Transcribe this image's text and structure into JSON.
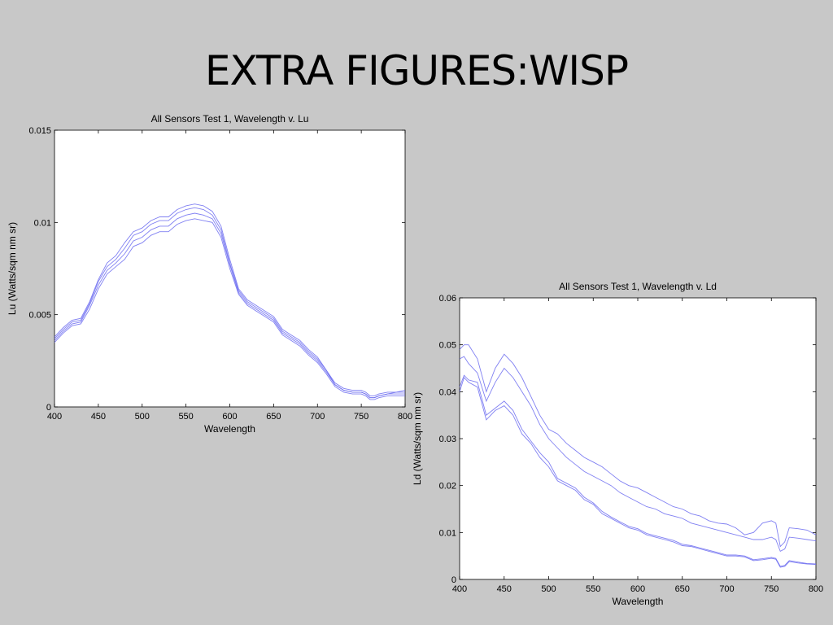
{
  "slide": {
    "title": "EXTRA FIGURES:WISP"
  },
  "chart_data": [
    {
      "type": "line",
      "title": "All Sensors Test 1, Wavelength v. Lu",
      "xlabel": "Wavelength",
      "ylabel": "Lu (Watts/sqm nm sr)",
      "xlim": [
        400,
        800
      ],
      "ylim": [
        0,
        0.015
      ],
      "xticks": [
        400,
        450,
        500,
        550,
        600,
        650,
        700,
        750,
        800
      ],
      "yticks": [
        0,
        0.005,
        0.01,
        0.015
      ],
      "ytick_labels": [
        "0",
        "0.005",
        "0.01",
        "0.015"
      ],
      "grid": false,
      "color": "#6a6af0",
      "series": [
        {
          "x": [
            400,
            410,
            420,
            430,
            440,
            450,
            460,
            470,
            480,
            490,
            500,
            510,
            520,
            530,
            540,
            550,
            560,
            570,
            580,
            590,
            600,
            610,
            620,
            630,
            640,
            650,
            660,
            670,
            680,
            690,
            700,
            710,
            720,
            730,
            740,
            750,
            755,
            760,
            765,
            770,
            780,
            790,
            800
          ],
          "y": [
            0.0035,
            0.004,
            0.0044,
            0.0045,
            0.0053,
            0.0064,
            0.0072,
            0.0076,
            0.008,
            0.0087,
            0.0089,
            0.0093,
            0.0095,
            0.0095,
            0.0099,
            0.0101,
            0.0102,
            0.0101,
            0.01,
            0.0092,
            0.0075,
            0.0061,
            0.0055,
            0.0052,
            0.0049,
            0.0046,
            0.0039,
            0.0036,
            0.0033,
            0.0028,
            0.0024,
            0.0018,
            0.0011,
            0.0008,
            0.0007,
            0.0007,
            0.0006,
            0.0004,
            0.0004,
            0.0005,
            0.0006,
            0.0006,
            0.0006
          ]
        },
        {
          "x": [
            400,
            410,
            420,
            430,
            440,
            450,
            460,
            470,
            480,
            490,
            500,
            510,
            520,
            530,
            540,
            550,
            560,
            570,
            580,
            590,
            600,
            610,
            620,
            630,
            640,
            650,
            660,
            670,
            680,
            690,
            700,
            710,
            720,
            730,
            740,
            750,
            755,
            760,
            765,
            770,
            780,
            790,
            800
          ],
          "y": [
            0.0036,
            0.0041,
            0.0045,
            0.0046,
            0.0055,
            0.0066,
            0.0074,
            0.0078,
            0.0083,
            0.009,
            0.0092,
            0.0096,
            0.0098,
            0.0098,
            0.0102,
            0.0104,
            0.0105,
            0.0104,
            0.0102,
            0.0094,
            0.0077,
            0.0062,
            0.0056,
            0.0053,
            0.005,
            0.0047,
            0.004,
            0.0037,
            0.0034,
            0.0029,
            0.0025,
            0.0019,
            0.0012,
            0.0009,
            0.0008,
            0.0008,
            0.0007,
            0.0005,
            0.0005,
            0.0006,
            0.0007,
            0.0007,
            0.0007
          ]
        },
        {
          "x": [
            400,
            410,
            420,
            430,
            440,
            450,
            460,
            470,
            480,
            490,
            500,
            510,
            520,
            530,
            540,
            550,
            560,
            570,
            580,
            590,
            600,
            610,
            620,
            630,
            640,
            650,
            660,
            670,
            680,
            690,
            700,
            710,
            720,
            730,
            740,
            750,
            755,
            760,
            765,
            770,
            780,
            790,
            800
          ],
          "y": [
            0.0037,
            0.0042,
            0.0046,
            0.0047,
            0.0056,
            0.0068,
            0.0076,
            0.008,
            0.0086,
            0.0093,
            0.0095,
            0.0099,
            0.0101,
            0.0101,
            0.0105,
            0.0107,
            0.0108,
            0.0107,
            0.0104,
            0.0096,
            0.0078,
            0.0063,
            0.0057,
            0.0054,
            0.0051,
            0.0048,
            0.0041,
            0.0038,
            0.0035,
            0.003,
            0.0026,
            0.002,
            0.0012,
            0.0009,
            0.0008,
            0.0008,
            0.0007,
            0.0005,
            0.0005,
            0.0006,
            0.0007,
            0.0008,
            0.0008
          ]
        },
        {
          "x": [
            400,
            410,
            420,
            430,
            440,
            450,
            460,
            470,
            480,
            490,
            500,
            510,
            520,
            530,
            540,
            550,
            560,
            570,
            580,
            590,
            600,
            610,
            620,
            630,
            640,
            650,
            660,
            670,
            680,
            690,
            700,
            710,
            720,
            730,
            740,
            750,
            755,
            760,
            765,
            770,
            780,
            790,
            800
          ],
          "y": [
            0.0038,
            0.0043,
            0.0047,
            0.0048,
            0.0057,
            0.0069,
            0.0078,
            0.0082,
            0.0089,
            0.0095,
            0.0097,
            0.0101,
            0.0103,
            0.0103,
            0.0107,
            0.0109,
            0.011,
            0.0109,
            0.0106,
            0.0098,
            0.008,
            0.0064,
            0.0058,
            0.0055,
            0.0052,
            0.0049,
            0.0042,
            0.0039,
            0.0036,
            0.0031,
            0.0027,
            0.002,
            0.0013,
            0.001,
            0.0009,
            0.0009,
            0.0008,
            0.0006,
            0.0006,
            0.0007,
            0.0008,
            0.0008,
            0.0009
          ]
        }
      ]
    },
    {
      "type": "line",
      "title": "All Sensors Test 1, Wavelength v. Ld",
      "xlabel": "Wavelength",
      "ylabel": "Ld (Watts/sqm nm sr)",
      "xlim": [
        400,
        800
      ],
      "ylim": [
        0,
        0.06
      ],
      "xticks": [
        400,
        450,
        500,
        550,
        600,
        650,
        700,
        750,
        800
      ],
      "yticks": [
        0,
        0.01,
        0.02,
        0.03,
        0.04,
        0.05,
        0.06
      ],
      "ytick_labels": [
        "0",
        "0.01",
        "0.02",
        "0.03",
        "0.04",
        "0.05",
        "0.06"
      ],
      "grid": false,
      "color": "#6a6af0",
      "series": [
        {
          "x": [
            400,
            405,
            410,
            420,
            430,
            440,
            450,
            460,
            470,
            480,
            490,
            500,
            510,
            520,
            530,
            540,
            550,
            560,
            570,
            580,
            590,
            600,
            610,
            620,
            630,
            640,
            650,
            660,
            670,
            680,
            690,
            700,
            710,
            720,
            730,
            740,
            750,
            755,
            760,
            765,
            770,
            780,
            790,
            800
          ],
          "y": [
            0.04,
            0.043,
            0.042,
            0.041,
            0.034,
            0.036,
            0.037,
            0.035,
            0.031,
            0.029,
            0.026,
            0.024,
            0.021,
            0.02,
            0.019,
            0.017,
            0.016,
            0.014,
            0.013,
            0.012,
            0.011,
            0.0105,
            0.0095,
            0.009,
            0.0085,
            0.008,
            0.0072,
            0.007,
            0.0065,
            0.006,
            0.0055,
            0.005,
            0.005,
            0.0048,
            0.004,
            0.0042,
            0.0045,
            0.0043,
            0.0026,
            0.0028,
            0.0038,
            0.0035,
            0.0033,
            0.0032
          ]
        },
        {
          "x": [
            400,
            405,
            410,
            420,
            430,
            440,
            450,
            460,
            470,
            480,
            490,
            500,
            510,
            520,
            530,
            540,
            550,
            560,
            570,
            580,
            590,
            600,
            610,
            620,
            630,
            640,
            650,
            660,
            670,
            680,
            690,
            700,
            710,
            720,
            730,
            740,
            750,
            755,
            760,
            765,
            770,
            780,
            790,
            800
          ],
          "y": [
            0.041,
            0.0435,
            0.0425,
            0.042,
            0.035,
            0.0365,
            0.038,
            0.036,
            0.032,
            0.0295,
            0.027,
            0.025,
            0.0215,
            0.0205,
            0.0195,
            0.0175,
            0.0163,
            0.0145,
            0.0133,
            0.0123,
            0.0113,
            0.0108,
            0.0098,
            0.0093,
            0.0088,
            0.0083,
            0.0075,
            0.0072,
            0.0067,
            0.0062,
            0.0057,
            0.0052,
            0.0052,
            0.005,
            0.0042,
            0.0044,
            0.0047,
            0.0045,
            0.0028,
            0.003,
            0.004,
            0.0037,
            0.0034,
            0.0033
          ]
        },
        {
          "x": [
            400,
            405,
            410,
            420,
            430,
            440,
            450,
            460,
            470,
            480,
            490,
            500,
            510,
            520,
            530,
            540,
            550,
            560,
            570,
            580,
            590,
            600,
            610,
            620,
            630,
            640,
            650,
            660,
            670,
            680,
            690,
            700,
            710,
            720,
            730,
            740,
            750,
            755,
            760,
            765,
            770,
            780,
            790,
            800
          ],
          "y": [
            0.047,
            0.0475,
            0.046,
            0.044,
            0.038,
            0.042,
            0.045,
            0.043,
            0.04,
            0.037,
            0.033,
            0.03,
            0.028,
            0.026,
            0.0245,
            0.023,
            0.022,
            0.021,
            0.02,
            0.0185,
            0.0175,
            0.0165,
            0.0155,
            0.015,
            0.014,
            0.0135,
            0.013,
            0.012,
            0.0115,
            0.011,
            0.0105,
            0.01,
            0.0095,
            0.009,
            0.0085,
            0.0085,
            0.009,
            0.0085,
            0.006,
            0.0065,
            0.009,
            0.0088,
            0.0085,
            0.0082
          ]
        },
        {
          "x": [
            400,
            405,
            410,
            420,
            430,
            440,
            450,
            460,
            470,
            480,
            490,
            500,
            510,
            520,
            530,
            540,
            550,
            560,
            570,
            580,
            590,
            600,
            610,
            620,
            630,
            640,
            650,
            660,
            670,
            680,
            690,
            700,
            710,
            720,
            730,
            740,
            750,
            755,
            760,
            765,
            770,
            780,
            790,
            800
          ],
          "y": [
            0.049,
            0.05,
            0.05,
            0.047,
            0.04,
            0.045,
            0.048,
            0.046,
            0.043,
            0.039,
            0.035,
            0.032,
            0.031,
            0.029,
            0.0275,
            0.026,
            0.025,
            0.024,
            0.0225,
            0.021,
            0.02,
            0.0195,
            0.0185,
            0.0175,
            0.0165,
            0.0155,
            0.015,
            0.014,
            0.0135,
            0.0125,
            0.012,
            0.0118,
            0.011,
            0.0095,
            0.01,
            0.012,
            0.0125,
            0.012,
            0.007,
            0.008,
            0.011,
            0.0108,
            0.0105,
            0.0095
          ]
        }
      ]
    }
  ]
}
